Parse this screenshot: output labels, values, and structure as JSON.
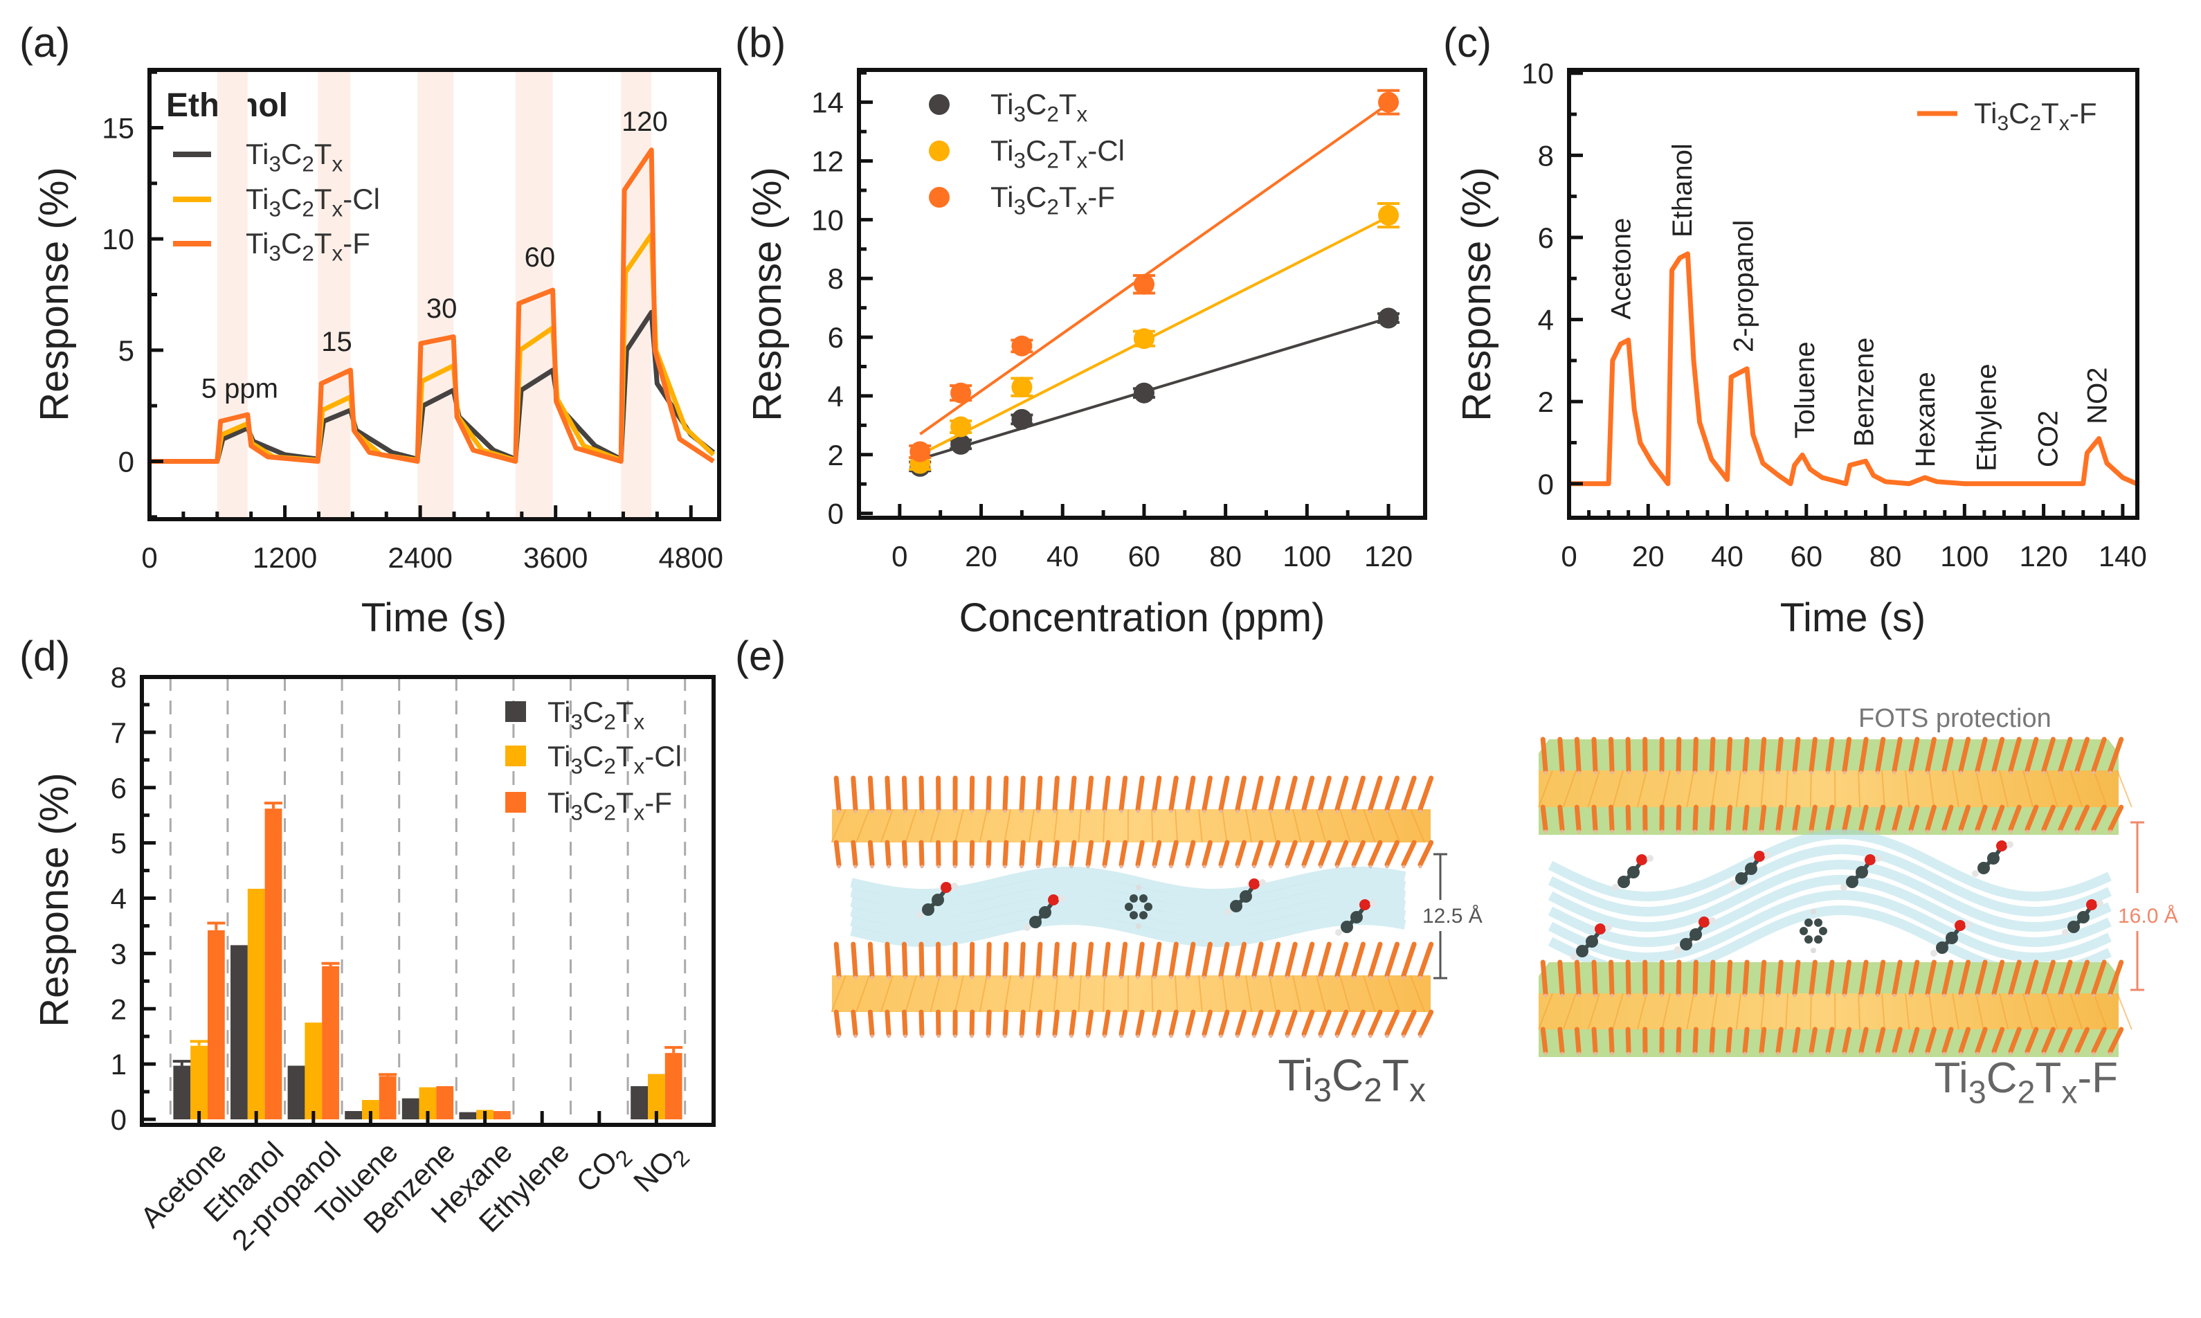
{
  "figure": {
    "panel_labels": [
      "(a)",
      "(b)",
      "(c)",
      "(d)",
      "(e)"
    ]
  },
  "colors": {
    "Ti3C2Tx": "#454241",
    "Ti3C2Tx-Cl": "#FFB000",
    "Ti3C2Tx-F": "#FF7222",
    "exposure_band": "#FDEFE8",
    "grid_dash": "#AAAAAA"
  },
  "chart_data": [
    {
      "panel": "(a)",
      "type": "line",
      "title": "Ethanol",
      "xlabel": "Time (s)",
      "ylabel": "Response (%)",
      "xlim": [
        0,
        5050
      ],
      "ylim": [
        -2.6,
        17.6
      ],
      "xticks": [
        0,
        1200,
        2400,
        3600,
        4800
      ],
      "x_minor_step": 300,
      "yticks": [
        0,
        5,
        10,
        15
      ],
      "y_minor_step": 2.5,
      "legend_position": "top-left",
      "exposure_intervals": [
        [
          600,
          870
        ],
        [
          1493,
          1782
        ],
        [
          2375,
          2695
        ],
        [
          3245,
          3575
        ],
        [
          4180,
          4450
        ]
      ],
      "annotations": [
        {
          "text": "5 ppm",
          "x": 800,
          "y": 3.3
        },
        {
          "text": "15",
          "x": 1660,
          "y": 5.4
        },
        {
          "text": "30",
          "x": 2590,
          "y": 6.9
        },
        {
          "text": "60",
          "x": 3460,
          "y": 9.2
        },
        {
          "text": "120",
          "x": 4390,
          "y": 15.3
        }
      ],
      "series": [
        {
          "name": "Ti3C2Tx",
          "points": [
            [
              0,
              0
            ],
            [
              600,
              0
            ],
            [
              650,
              1.0
            ],
            [
              870,
              1.5
            ],
            [
              920,
              0.9
            ],
            [
              1200,
              0.3
            ],
            [
              1493,
              0.1
            ],
            [
              1543,
              1.8
            ],
            [
              1782,
              2.3
            ],
            [
              1832,
              1.4
            ],
            [
              2150,
              0.4
            ],
            [
              2375,
              0.1
            ],
            [
              2425,
              2.5
            ],
            [
              2695,
              3.2
            ],
            [
              2745,
              2.0
            ],
            [
              3050,
              0.5
            ],
            [
              3245,
              0.1
            ],
            [
              3295,
              3.2
            ],
            [
              3575,
              4.1
            ],
            [
              3625,
              2.5
            ],
            [
              3950,
              0.7
            ],
            [
              4180,
              0.1
            ],
            [
              4230,
              5.0
            ],
            [
              4450,
              6.7
            ],
            [
              4500,
              3.5
            ],
            [
              4800,
              1.2
            ],
            [
              5000,
              0.4
            ]
          ]
        },
        {
          "name": "Ti3C2Tx-Cl",
          "points": [
            [
              0,
              0
            ],
            [
              600,
              0
            ],
            [
              640,
              1.2
            ],
            [
              870,
              1.7
            ],
            [
              910,
              0.8
            ],
            [
              1100,
              0.2
            ],
            [
              1493,
              0.05
            ],
            [
              1533,
              2.3
            ],
            [
              1782,
              2.9
            ],
            [
              1822,
              1.3
            ],
            [
              2050,
              0.3
            ],
            [
              2375,
              0.05
            ],
            [
              2415,
              3.6
            ],
            [
              2695,
              4.3
            ],
            [
              2735,
              2.0
            ],
            [
              2950,
              0.5
            ],
            [
              3245,
              0.05
            ],
            [
              3285,
              5.0
            ],
            [
              3575,
              6.0
            ],
            [
              3615,
              2.8
            ],
            [
              3850,
              0.7
            ],
            [
              4180,
              0.05
            ],
            [
              4220,
              8.5
            ],
            [
              4450,
              10.2
            ],
            [
              4490,
              5.0
            ],
            [
              4750,
              1.5
            ],
            [
              5000,
              0.3
            ]
          ]
        },
        {
          "name": "Ti3C2Tx-F",
          "points": [
            [
              0,
              0
            ],
            [
              600,
              0
            ],
            [
              630,
              1.8
            ],
            [
              870,
              2.1
            ],
            [
              900,
              0.7
            ],
            [
              1050,
              0.2
            ],
            [
              1493,
              0
            ],
            [
              1523,
              3.5
            ],
            [
              1782,
              4.1
            ],
            [
              1812,
              1.4
            ],
            [
              1950,
              0.4
            ],
            [
              2375,
              0
            ],
            [
              2405,
              5.3
            ],
            [
              2695,
              5.6
            ],
            [
              2725,
              2.0
            ],
            [
              2870,
              0.5
            ],
            [
              3245,
              0
            ],
            [
              3275,
              7.1
            ],
            [
              3575,
              7.7
            ],
            [
              3605,
              2.7
            ],
            [
              3780,
              0.6
            ],
            [
              4180,
              0
            ],
            [
              4210,
              12.2
            ],
            [
              4450,
              14.0
            ],
            [
              4480,
              5.0
            ],
            [
              4700,
              1.0
            ],
            [
              5000,
              0
            ]
          ]
        }
      ]
    },
    {
      "panel": "(b)",
      "type": "scatter",
      "xlabel": "Concentration (ppm)",
      "ylabel": "Response (%)",
      "xlim": [
        -10,
        129
      ],
      "ylim": [
        -0.15,
        15.1
      ],
      "xticks": [
        0,
        20,
        40,
        60,
        80,
        100,
        120
      ],
      "x_minor_step": 10,
      "yticks": [
        0,
        2,
        4,
        6,
        8,
        10,
        12,
        14
      ],
      "y_minor_step": 1,
      "legend_position": "top-left",
      "x": [
        5,
        15,
        30,
        60,
        120
      ],
      "series": [
        {
          "name": "Ti3C2Tx",
          "values": [
            1.6,
            2.35,
            3.2,
            4.1,
            6.65
          ],
          "errors": [
            0.15,
            0.15,
            0.15,
            0.15,
            0.15
          ],
          "fit": [
            [
              5,
              1.85
            ],
            [
              120,
              6.65
            ]
          ]
        },
        {
          "name": "Ti3C2Tx-Cl",
          "values": [
            1.7,
            2.95,
            4.3,
            5.95,
            10.15
          ],
          "errors": [
            0.2,
            0.2,
            0.3,
            0.25,
            0.4
          ],
          "fit": [
            [
              5,
              2.0
            ],
            [
              120,
              10.1
            ]
          ]
        },
        {
          "name": "Ti3C2Tx-F",
          "values": [
            2.1,
            4.1,
            5.7,
            7.8,
            14.0
          ],
          "errors": [
            0.2,
            0.25,
            0.2,
            0.3,
            0.4
          ],
          "fit": [
            [
              5,
              2.7
            ],
            [
              120,
              13.95
            ]
          ]
        }
      ]
    },
    {
      "panel": "(c)",
      "type": "line",
      "xlabel": "Time (s)",
      "ylabel": "Response (%)",
      "xlim": [
        0,
        143.7
      ],
      "ylim": [
        -0.83,
        10.08
      ],
      "xticks": [
        0,
        20,
        40,
        60,
        80,
        100,
        120,
        140
      ],
      "x_minor_step": 5,
      "yticks": [
        0,
        2,
        4,
        6,
        8,
        10
      ],
      "y_minor_step": 1,
      "legend_position": "top-right",
      "annotations": [
        {
          "text": "Acetone",
          "x": 13,
          "y": 4.0
        },
        {
          "text": "Ethanol",
          "x": 28.5,
          "y": 6.0
        },
        {
          "text": "2-propanol",
          "x": 44,
          "y": 3.2
        },
        {
          "text": "Toluene",
          "x": 59.5,
          "y": 1.1
        },
        {
          "text": "Benzene",
          "x": 74.5,
          "y": 0.9
        },
        {
          "text": "Hexane",
          "x": 90,
          "y": 0.4
        },
        {
          "text": "Ethylene",
          "x": 105.5,
          "y": 0.3
        },
        {
          "text": "CO2",
          "x": 121,
          "y": 0.4
        },
        {
          "text": "NO2",
          "x": 133.5,
          "y": 1.45
        }
      ],
      "series": [
        {
          "name": "Ti3C2Tx-F",
          "points": [
            [
              0,
              0
            ],
            [
              10,
              0
            ],
            [
              11,
              3.0
            ],
            [
              13,
              3.4
            ],
            [
              15,
              3.5
            ],
            [
              16.5,
              1.8
            ],
            [
              18,
              1.0
            ],
            [
              21,
              0.5
            ],
            [
              25,
              0
            ],
            [
              26,
              5.2
            ],
            [
              28,
              5.5
            ],
            [
              30,
              5.6
            ],
            [
              31.5,
              3.0
            ],
            [
              33,
              1.5
            ],
            [
              36,
              0.6
            ],
            [
              40,
              0.1
            ],
            [
              41,
              2.6
            ],
            [
              43,
              2.7
            ],
            [
              45,
              2.8
            ],
            [
              46.5,
              1.2
            ],
            [
              49,
              0.5
            ],
            [
              53,
              0.2
            ],
            [
              56,
              0
            ],
            [
              57,
              0.45
            ],
            [
              59,
              0.7
            ],
            [
              61,
              0.35
            ],
            [
              64,
              0.15
            ],
            [
              70,
              0
            ],
            [
              71,
              0.45
            ],
            [
              75,
              0.55
            ],
            [
              77,
              0.2
            ],
            [
              80,
              0.05
            ],
            [
              86,
              0
            ],
            [
              90,
              0.15
            ],
            [
              93,
              0.05
            ],
            [
              100,
              0
            ],
            [
              130,
              0
            ],
            [
              131,
              0.75
            ],
            [
              134,
              1.1
            ],
            [
              136,
              0.5
            ],
            [
              140,
              0.15
            ],
            [
              143.5,
              0
            ]
          ]
        }
      ]
    },
    {
      "panel": "(d)",
      "type": "bar",
      "xlabel": "",
      "ylabel": "Response (%)",
      "ylim": [
        -0.1,
        8
      ],
      "yticks": [
        0,
        1,
        2,
        3,
        4,
        5,
        6,
        7,
        8
      ],
      "y_minor_step": 0.5,
      "grid": "dashed vertical separators",
      "legend_position": "top-right",
      "categories": [
        "Acetone",
        "Ethanol",
        "2-propanol",
        "Toluene",
        "Benzene",
        "Hexane",
        "Ethylene",
        "CO2",
        "NO2"
      ],
      "series": [
        {
          "name": "Ti3C2Tx",
          "values": [
            0.97,
            3.15,
            0.97,
            0.15,
            0.38,
            0.13,
            0,
            0,
            0.6
          ],
          "errors": [
            0.08,
            0,
            0,
            0,
            0,
            0,
            0,
            0,
            0
          ]
        },
        {
          "name": "Ti3C2Tx-Cl",
          "values": [
            1.33,
            4.17,
            1.75,
            0.35,
            0.58,
            0.17,
            0,
            0,
            0.82
          ],
          "errors": [
            0.08,
            0,
            0,
            0,
            0,
            0,
            0,
            0,
            0
          ]
        },
        {
          "name": "Ti3C2Tx-F",
          "values": [
            3.42,
            5.62,
            2.77,
            0.78,
            0.6,
            0.15,
            0,
            0,
            1.2
          ],
          "errors": [
            0.13,
            0.1,
            0.05,
            0.03,
            0,
            0,
            0,
            0,
            0.1
          ]
        }
      ]
    }
  ],
  "illustration": {
    "panel": "(e)",
    "left_label": "Ti3C2Tx",
    "right_label": "Ti3C2Tx-F",
    "left_spacing": "12.5 Å",
    "right_spacing": "16.0 Å",
    "coating_label": "FOTS protection",
    "spacing_colors": {
      "left": "#555555",
      "right": "#F2876A"
    }
  }
}
